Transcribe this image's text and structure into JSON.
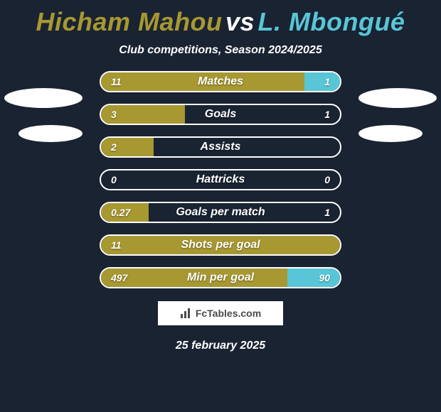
{
  "title": {
    "left_name": "Hicham Mahou",
    "vs": "vs",
    "right_name": "L. Mbongué",
    "left_color": "#a79831",
    "vs_color": "#ffffff",
    "right_color": "#58c6d6"
  },
  "subtitle": "Club competitions, Season 2024/2025",
  "colors": {
    "background": "#1a2332",
    "bar_border": "#ffffff",
    "left_fill": "#a79831",
    "right_fill": "#58c6d6",
    "text": "#ffffff"
  },
  "bars": [
    {
      "label": "Matches",
      "left": "11",
      "right": "1",
      "left_pct": 85,
      "right_pct": 15,
      "show_left": true,
      "show_right": true
    },
    {
      "label": "Goals",
      "left": "3",
      "right": "1",
      "left_pct": 35,
      "right_pct": 0,
      "show_left": true,
      "show_right": true
    },
    {
      "label": "Assists",
      "left": "2",
      "right": "",
      "left_pct": 22,
      "right_pct": 0,
      "show_left": true,
      "show_right": false
    },
    {
      "label": "Hattricks",
      "left": "0",
      "right": "0",
      "left_pct": 0,
      "right_pct": 0,
      "show_left": true,
      "show_right": true
    },
    {
      "label": "Goals per match",
      "left": "0.27",
      "right": "1",
      "left_pct": 20,
      "right_pct": 0,
      "show_left": true,
      "show_right": true
    },
    {
      "label": "Shots per goal",
      "left": "11",
      "right": "",
      "left_pct": 100,
      "right_pct": 0,
      "show_left": true,
      "show_right": false
    },
    {
      "label": "Min per goal",
      "left": "497",
      "right": "90",
      "left_pct": 78,
      "right_pct": 22,
      "show_left": true,
      "show_right": true
    }
  ],
  "brand": {
    "text": "FcTables.com",
    "icon_name": "bar-chart-icon"
  },
  "date": "25 february 2025"
}
